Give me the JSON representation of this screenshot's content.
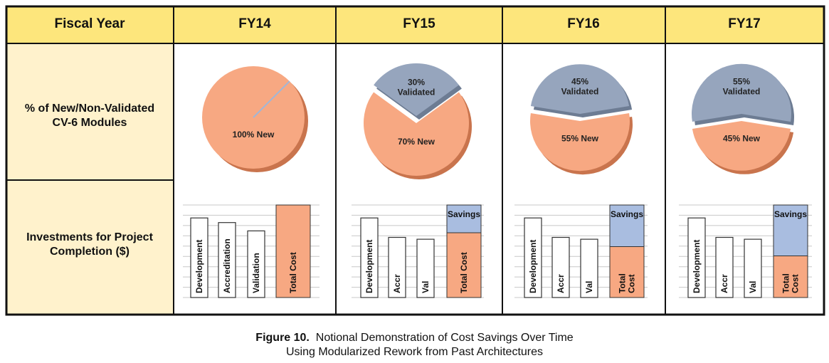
{
  "table": {
    "header_label": "Fiscal Year",
    "row1_label": [
      "% of New/Non-Validated",
      "CV-6 Modules"
    ],
    "row2_label": [
      "Investments for Project",
      "Completion ($)"
    ]
  },
  "colors": {
    "header_bg": "#fde67c",
    "label_bg": "#fff2cc",
    "new": "#f7a882",
    "new_side": "#c9744d",
    "validated": "#96a5bd",
    "validated_side": "#6d7c93",
    "savings": "#a9bde0",
    "total_cost": "#f7a882",
    "border": "#111111"
  },
  "chart_data": [
    {
      "type": "pie",
      "fiscal_year": "FY14",
      "slices": [
        {
          "label": "100% New",
          "value": 100
        }
      ],
      "bar_type": "bar",
      "bars": [
        {
          "label": "Development",
          "value": 0.86,
          "kind": "plain"
        },
        {
          "label": "Accreditation",
          "value": 0.81,
          "kind": "plain"
        },
        {
          "label": "Validation",
          "value": 0.72,
          "kind": "plain"
        },
        {
          "label": "Total Cost",
          "value": 1.0,
          "kind": "total"
        }
      ]
    },
    {
      "type": "pie",
      "fiscal_year": "FY15",
      "slices": [
        {
          "label": "70% New",
          "value": 70
        },
        {
          "label": "30%\nValidated",
          "value": 30
        }
      ],
      "bar_type": "bar",
      "bars": [
        {
          "label": "Development",
          "value": 0.86,
          "kind": "plain"
        },
        {
          "label": "Accr",
          "value": 0.65,
          "kind": "plain"
        },
        {
          "label": "Val",
          "value": 0.63,
          "kind": "plain"
        },
        {
          "label": "Total Cost",
          "value": 0.7,
          "kind": "total",
          "savings": 0.3,
          "savings_label": "Savings"
        }
      ]
    },
    {
      "type": "pie",
      "fiscal_year": "FY16",
      "slices": [
        {
          "label": "55% New",
          "value": 55
        },
        {
          "label": "45%\nValidated",
          "value": 45
        }
      ],
      "bar_type": "bar",
      "bars": [
        {
          "label": "Development",
          "value": 0.86,
          "kind": "plain"
        },
        {
          "label": "Accr",
          "value": 0.65,
          "kind": "plain"
        },
        {
          "label": "Val",
          "value": 0.63,
          "kind": "plain"
        },
        {
          "label": "Total\nCost",
          "value": 0.55,
          "kind": "total",
          "savings": 0.45,
          "savings_label": "Savings"
        }
      ]
    },
    {
      "type": "pie",
      "fiscal_year": "FY17",
      "slices": [
        {
          "label": "45% New",
          "value": 45
        },
        {
          "label": "55%\nValidated",
          "value": 55
        }
      ],
      "bar_type": "bar",
      "bars": [
        {
          "label": "Development",
          "value": 0.86,
          "kind": "plain"
        },
        {
          "label": "Accr",
          "value": 0.65,
          "kind": "plain"
        },
        {
          "label": "Val",
          "value": 0.63,
          "kind": "plain"
        },
        {
          "label": "Total\nCost",
          "value": 0.45,
          "kind": "total",
          "savings": 0.55,
          "savings_label": "Savings"
        }
      ]
    }
  ],
  "caption": {
    "figure_label": "Figure 10.",
    "line1": "Notional Demonstration of Cost Savings Over Time",
    "line2": "Using Modularized Rework from Past Architectures"
  }
}
